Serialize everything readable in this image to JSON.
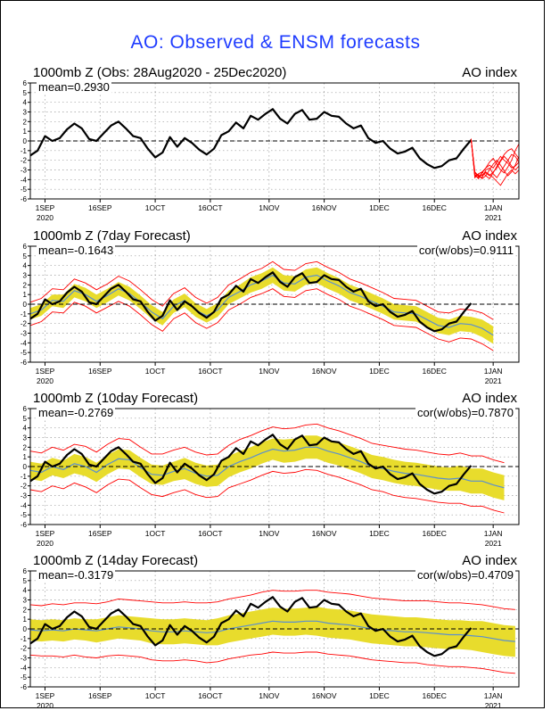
{
  "figure": {
    "title": "AO: Observed & ENSM forecasts"
  },
  "colors": {
    "observed": "#000000",
    "ensemble_mean": "#5a8fcf",
    "spread": "#e8dc2c",
    "envelope": "#ff0000",
    "zero_line": "#000000",
    "title": "#1f3cff"
  },
  "x_axis": {
    "ticks": [
      {
        "label": "1SEP",
        "sub": "2020",
        "day": 4
      },
      {
        "label": "16SEP",
        "sub": "",
        "day": 19
      },
      {
        "label": "1OCT",
        "sub": "",
        "day": 34
      },
      {
        "label": "16OCT",
        "sub": "",
        "day": 49
      },
      {
        "label": "1NOV",
        "sub": "",
        "day": 65
      },
      {
        "label": "16NOV",
        "sub": "",
        "day": 80
      },
      {
        "label": "1DEC",
        "sub": "",
        "day": 95
      },
      {
        "label": "16DEC",
        "sub": "",
        "day": 110
      },
      {
        "label": "1JAN",
        "sub": "2021",
        "day": 126
      }
    ]
  },
  "panels": [
    {
      "id": "observed",
      "title": "1000mb Z (Obs: 28Aug2020 - 25Dec2020)",
      "right_label": "AO index",
      "stat_left": "mean=0.2930",
      "stat_right": ""
    },
    {
      "id": "fc7",
      "title": "1000mb Z (7day Forecast)",
      "right_label": "AO index",
      "stat_left": "mean=-0.1643",
      "stat_right": "cor(w/obs)=0.9111"
    },
    {
      "id": "fc10",
      "title": "1000mb Z (10day Forecast)",
      "right_label": "AO index",
      "stat_left": "mean=-0.2769",
      "stat_right": "cor(w/obs)=0.7870"
    },
    {
      "id": "fc14",
      "title": "1000mb Z (14day Forecast)",
      "right_label": "AO index",
      "stat_left": "mean=-0.3179",
      "stat_right": "cor(w/obs)=0.4709"
    }
  ],
  "chart_data": {
    "type": "line",
    "x_start": "28Aug2020",
    "xlim_days": [
      0,
      133
    ],
    "ylim": [
      -6,
      6
    ],
    "y_ticks": [
      -6,
      -5,
      -4,
      -3,
      -2,
      -1,
      0,
      1,
      2,
      3,
      4,
      5,
      6
    ],
    "observed": {
      "days": [
        0,
        2,
        4,
        6,
        8,
        10,
        12,
        14,
        16,
        18,
        20,
        22,
        24,
        26,
        28,
        30,
        32,
        34,
        36,
        38,
        40,
        42,
        44,
        46,
        48,
        50,
        52,
        54,
        56,
        58,
        60,
        62,
        64,
        66,
        68,
        70,
        72,
        74,
        76,
        78,
        80,
        82,
        84,
        86,
        88,
        90,
        92,
        94,
        96,
        98,
        100,
        102,
        104,
        106,
        108,
        110,
        112,
        114,
        116,
        118,
        120
      ],
      "values": [
        -1.5,
        -1.0,
        0.5,
        0.0,
        0.3,
        1.2,
        1.8,
        1.3,
        0.2,
        0.0,
        0.8,
        1.6,
        2.0,
        1.3,
        0.5,
        0.3,
        -0.8,
        -1.7,
        -1.2,
        0.4,
        -0.6,
        0.3,
        -0.2,
        -0.9,
        -1.4,
        -0.8,
        0.6,
        1.0,
        1.9,
        1.3,
        2.6,
        2.2,
        2.8,
        3.3,
        2.3,
        1.8,
        2.8,
        3.2,
        2.2,
        2.3,
        3.0,
        2.6,
        2.5,
        1.8,
        1.3,
        1.6,
        0.3,
        -0.2,
        0.0,
        -0.8,
        -1.3,
        -1.1,
        -0.7,
        -1.8,
        -2.4,
        -2.8,
        -2.6,
        -2.0,
        -1.8,
        -0.8,
        0.1
      ]
    },
    "ensemble_members": {
      "days": [
        120,
        121,
        122,
        123,
        124,
        125,
        126,
        127,
        128,
        129,
        130,
        131,
        132,
        133
      ],
      "series": [
        [
          0.2,
          -3.5,
          -3.9,
          -3.2,
          -2.8,
          -2.5,
          -2.8,
          -2.2,
          -1.6,
          -2.0,
          -2.3,
          -2.8,
          -2.6,
          -2.2
        ],
        [
          0.2,
          -3.2,
          -3.6,
          -3.8,
          -3.0,
          -2.8,
          -3.4,
          -3.8,
          -3.2,
          -2.6,
          -2.0,
          -1.4,
          -1.6,
          -2.2
        ],
        [
          0.2,
          -3.8,
          -3.4,
          -3.2,
          -3.6,
          -3.9,
          -3.3,
          -2.6,
          -2.0,
          -1.4,
          -1.0,
          -0.8,
          -1.3,
          -1.8
        ],
        [
          0.2,
          -3.6,
          -3.8,
          -3.3,
          -2.8,
          -2.2,
          -1.8,
          -2.4,
          -3.0,
          -3.3,
          -2.7,
          -2.0,
          -1.0,
          -0.3
        ],
        [
          0.2,
          -3.7,
          -3.5,
          -3.6,
          -3.2,
          -3.5,
          -3.8,
          -4.2,
          -4.6,
          -4.0,
          -3.4,
          -3.0,
          -3.4,
          -3.0
        ],
        [
          0.2,
          -3.5,
          -3.6,
          -3.9,
          -3.6,
          -3.0,
          -2.4,
          -2.0,
          -2.5,
          -3.1,
          -3.6,
          -3.2,
          -2.5,
          -1.6
        ],
        [
          0.2,
          -3.3,
          -3.7,
          -3.5,
          -3.3,
          -3.6,
          -3.2,
          -2.8,
          -2.1,
          -1.6,
          -2.0,
          -2.6,
          -3.0,
          -2.6
        ]
      ]
    },
    "forecasts": {
      "fc7": {
        "days": [
          0,
          3,
          6,
          9,
          12,
          15,
          18,
          21,
          24,
          27,
          30,
          33,
          36,
          39,
          42,
          45,
          48,
          51,
          54,
          57,
          60,
          63,
          66,
          69,
          72,
          75,
          78,
          81,
          84,
          87,
          90,
          93,
          96,
          99,
          102,
          105,
          108,
          111,
          114,
          117,
          120,
          123,
          126
        ],
        "mean": [
          -1.0,
          -0.6,
          0.4,
          0.3,
          1.4,
          1.0,
          0.3,
          0.9,
          1.6,
          1.1,
          0.2,
          -0.8,
          -1.5,
          -0.2,
          0.4,
          -0.6,
          -1.2,
          -0.6,
          0.7,
          1.3,
          2.0,
          2.4,
          3.0,
          2.2,
          2.1,
          2.8,
          3.0,
          2.4,
          1.9,
          1.2,
          0.8,
          0.3,
          -0.2,
          -0.8,
          -0.9,
          -1.0,
          -1.6,
          -2.2,
          -2.4,
          -2.0,
          -2.1,
          -2.5,
          -3.2
        ],
        "spread": [
          0.6,
          0.6,
          0.6,
          0.7,
          0.7,
          0.7,
          0.7,
          0.7,
          0.7,
          0.7,
          0.7,
          0.7,
          0.7,
          0.7,
          0.7,
          0.7,
          0.7,
          0.7,
          0.7,
          0.7,
          0.8,
          0.8,
          0.8,
          0.8,
          0.8,
          0.8,
          0.8,
          0.8,
          0.8,
          0.8,
          0.8,
          0.8,
          0.8,
          0.8,
          0.8,
          0.8,
          0.8,
          0.8,
          0.8,
          0.8,
          0.8,
          0.9,
          0.9
        ],
        "envelope": [
          1.2,
          1.2,
          1.2,
          1.2,
          1.2,
          1.2,
          1.2,
          1.2,
          1.3,
          1.3,
          1.3,
          1.3,
          1.3,
          1.3,
          1.3,
          1.3,
          1.3,
          1.3,
          1.3,
          1.3,
          1.3,
          1.3,
          1.4,
          1.4,
          1.4,
          1.4,
          1.4,
          1.4,
          1.4,
          1.4,
          1.4,
          1.4,
          1.4,
          1.4,
          1.4,
          1.4,
          1.4,
          1.4,
          1.5,
          1.5,
          1.5,
          1.6,
          1.6
        ]
      },
      "fc10": {
        "days": [
          0,
          3,
          6,
          9,
          12,
          15,
          18,
          21,
          24,
          27,
          30,
          33,
          36,
          39,
          42,
          45,
          48,
          51,
          54,
          57,
          60,
          63,
          66,
          69,
          72,
          75,
          78,
          81,
          84,
          87,
          90,
          93,
          96,
          99,
          102,
          105,
          108,
          111,
          114,
          117,
          120,
          123,
          126,
          129
        ],
        "mean": [
          -0.4,
          -0.6,
          0.0,
          -0.3,
          0.3,
          0.0,
          -0.6,
          0.2,
          0.8,
          0.7,
          -0.1,
          -0.8,
          -0.9,
          -0.5,
          -0.2,
          -0.7,
          -1.0,
          -0.9,
          0.0,
          0.5,
          0.9,
          1.4,
          1.8,
          1.6,
          1.7,
          2.0,
          2.0,
          1.6,
          1.3,
          0.9,
          0.5,
          0.0,
          -0.2,
          -0.5,
          -0.7,
          -0.8,
          -1.0,
          -1.2,
          -1.3,
          -1.2,
          -1.5,
          -1.5,
          -1.9,
          -2.2
        ],
        "spread": [
          0.9,
          0.9,
          0.9,
          0.9,
          1.0,
          1.0,
          1.0,
          1.0,
          1.0,
          1.0,
          1.0,
          1.0,
          1.0,
          1.0,
          1.1,
          1.1,
          1.1,
          1.1,
          1.1,
          1.1,
          1.1,
          1.1,
          1.1,
          1.2,
          1.2,
          1.2,
          1.2,
          1.2,
          1.2,
          1.2,
          1.2,
          1.2,
          1.2,
          1.2,
          1.2,
          1.2,
          1.2,
          1.2,
          1.2,
          1.3,
          1.3,
          1.3,
          1.3,
          1.3
        ],
        "envelope": [
          2.0,
          2.0,
          2.0,
          2.0,
          2.0,
          2.1,
          2.1,
          2.1,
          2.1,
          2.1,
          2.1,
          2.1,
          2.2,
          2.2,
          2.2,
          2.2,
          2.2,
          2.2,
          2.2,
          2.3,
          2.3,
          2.3,
          2.3,
          2.3,
          2.3,
          2.3,
          2.4,
          2.4,
          2.4,
          2.4,
          2.4,
          2.4,
          2.4,
          2.5,
          2.5,
          2.5,
          2.5,
          2.5,
          2.5,
          2.6,
          2.6,
          2.6,
          2.6,
          2.6
        ]
      },
      "fc14": {
        "days": [
          0,
          3,
          6,
          9,
          12,
          15,
          18,
          21,
          24,
          27,
          30,
          33,
          36,
          39,
          42,
          45,
          48,
          51,
          54,
          57,
          60,
          63,
          66,
          69,
          72,
          75,
          78,
          81,
          84,
          87,
          90,
          93,
          96,
          99,
          102,
          105,
          108,
          111,
          114,
          117,
          120,
          123,
          126,
          129,
          132
        ],
        "mean": [
          -0.1,
          -0.2,
          -0.1,
          -0.2,
          0.0,
          -0.1,
          -0.2,
          0.0,
          0.2,
          0.1,
          0.0,
          -0.2,
          -0.3,
          -0.3,
          -0.2,
          -0.3,
          -0.4,
          -0.3,
          0.0,
          0.2,
          0.4,
          0.6,
          0.8,
          0.7,
          0.7,
          0.8,
          0.8,
          0.6,
          0.5,
          0.4,
          0.2,
          0.0,
          -0.1,
          -0.2,
          -0.3,
          -0.3,
          -0.4,
          -0.5,
          -0.6,
          -0.6,
          -0.7,
          -0.8,
          -1.0,
          -1.2,
          -1.3
        ],
        "spread": [
          1.1,
          1.1,
          1.1,
          1.1,
          1.1,
          1.1,
          1.2,
          1.2,
          1.2,
          1.2,
          1.2,
          1.3,
          1.3,
          1.3,
          1.3,
          1.3,
          1.3,
          1.4,
          1.4,
          1.4,
          1.4,
          1.4,
          1.4,
          1.4,
          1.4,
          1.4,
          1.5,
          1.5,
          1.5,
          1.5,
          1.5,
          1.5,
          1.5,
          1.5,
          1.5,
          1.5,
          1.5,
          1.5,
          1.5,
          1.5,
          1.5,
          1.6,
          1.6,
          1.6,
          1.6
        ],
        "envelope": [
          2.6,
          2.6,
          2.7,
          2.7,
          2.7,
          2.8,
          2.8,
          2.8,
          2.9,
          2.9,
          2.9,
          3.0,
          3.0,
          3.0,
          3.0,
          3.0,
          3.1,
          3.1,
          3.1,
          3.1,
          3.1,
          3.2,
          3.2,
          3.2,
          3.2,
          3.2,
          3.2,
          3.2,
          3.2,
          3.2,
          3.2,
          3.2,
          3.2,
          3.2,
          3.2,
          3.2,
          3.3,
          3.3,
          3.3,
          3.3,
          3.3,
          3.3,
          3.3,
          3.3,
          3.3
        ]
      }
    }
  }
}
